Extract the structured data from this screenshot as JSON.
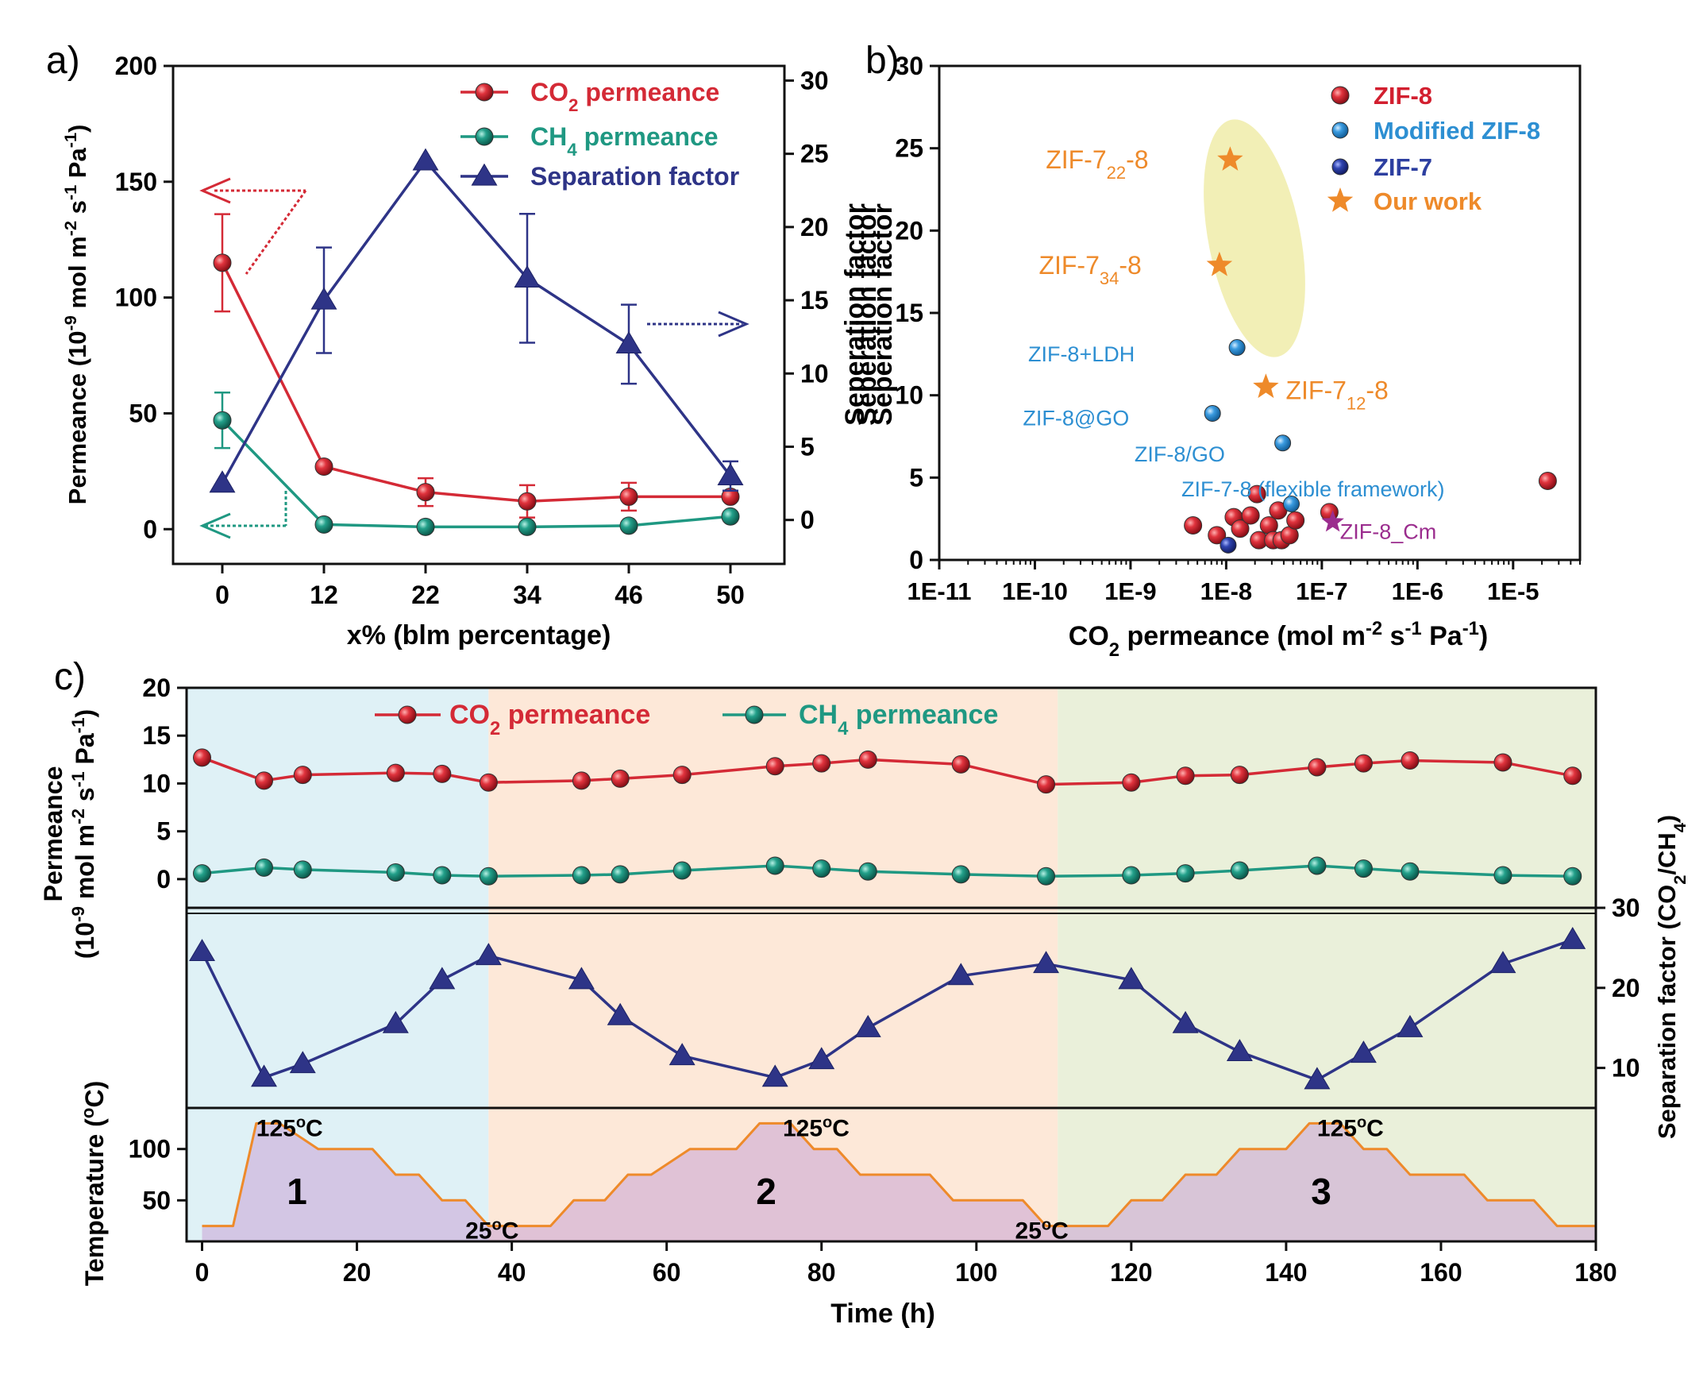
{
  "colors": {
    "co2": "#d42a36",
    "co2_marker": "#d21f2f",
    "ch4": "#1f9882",
    "sf": "#2e3487",
    "orange": "#ee8a2a",
    "modified_blue": "#2d8fd2",
    "zif7_blue": "#2d3fa0",
    "purple": "#9b2d8e",
    "ellipse_fill": "#f2efb6",
    "bg1": "#dff1f6",
    "bg2": "#fde8d8",
    "bg3": "#eaf0da",
    "temp_line": "#ee8a2a"
  },
  "panel_labels": [
    "a)",
    "b)",
    "c)"
  ],
  "chart_data": [
    {
      "id": "a",
      "type": "line",
      "xlabel": "x% (blm percentage)",
      "ylabel": "Permeance (10<sup>-9</sup> mol m<sup>-2</sup> s<sup>-1</sup> Pa<sup>-1</sup>)",
      "y2label": "Seperation factor",
      "categories": [
        "0",
        "12",
        "22",
        "34",
        "46",
        "50"
      ],
      "ylim": [
        -15,
        200
      ],
      "yticks": [
        0,
        50,
        100,
        150,
        200
      ],
      "y2lim": [
        -3,
        31
      ],
      "y2ticks": [
        0,
        5,
        10,
        15,
        20,
        25,
        30
      ],
      "legend_position": "top-right",
      "series": [
        {
          "name": "CO<sub>2</sub> permeance",
          "axis": "left",
          "values": [
            115,
            27,
            16,
            12,
            14,
            14
          ],
          "errors": [
            21,
            0,
            6,
            7,
            6,
            0
          ]
        },
        {
          "name": "CH<sub>4</sub> permeance",
          "axis": "left",
          "values": [
            47,
            2,
            1,
            1,
            1.5,
            5.5
          ],
          "errors": [
            12,
            0,
            0,
            0,
            0,
            0
          ]
        },
        {
          "name": "Separation factor",
          "axis": "right",
          "values": [
            2.5,
            15,
            24.5,
            16.5,
            12,
            3
          ],
          "errors": [
            0,
            3.6,
            0,
            4.4,
            2.7,
            1
          ]
        }
      ]
    },
    {
      "id": "b",
      "type": "scatter",
      "xlabel": "CO<sub>2</sub> permeance (mol m<sup>-2</sup> s<sup>-1</sup> Pa<sup>-1</sup>)",
      "ylabel_lines": [
        "Seperation factor",
        "Seperation factor"
      ],
      "x_scale": "log",
      "xlim": [
        1e-11,
        5e-05
      ],
      "xtick_labels": [
        "1E-11",
        "1E-10",
        "1E-9",
        "1E-8",
        "1E-7",
        "1E-6",
        "1E-5"
      ],
      "xtick_exponents": [
        -11,
        -10,
        -9,
        -8,
        -7,
        -6,
        -5
      ],
      "ylim": [
        0,
        30
      ],
      "yticks": [
        0,
        5,
        10,
        15,
        20,
        25,
        30
      ],
      "legend_position": "top-right",
      "legend": [
        {
          "label": "ZIF-8",
          "kind": "zif8"
        },
        {
          "label": "Modified ZIF-8",
          "kind": "modified"
        },
        {
          "label": "ZIF-7",
          "kind": "zif7"
        },
        {
          "label": "Our work",
          "kind": "ours"
        }
      ],
      "points": [
        {
          "kind": "zif8",
          "x": 4.5e-09,
          "y": 2.1
        },
        {
          "kind": "zif8",
          "x": 8e-09,
          "y": 1.5
        },
        {
          "kind": "zif8",
          "x": 1.2e-08,
          "y": 2.6
        },
        {
          "kind": "zif8",
          "x": 1.4e-08,
          "y": 1.9
        },
        {
          "kind": "zif8",
          "x": 1.8e-08,
          "y": 2.7
        },
        {
          "kind": "zif8",
          "x": 2.1e-08,
          "y": 4.0
        },
        {
          "kind": "zif8",
          "x": 2.2e-08,
          "y": 1.2
        },
        {
          "kind": "zif8",
          "x": 2.8e-08,
          "y": 2.1
        },
        {
          "kind": "zif8",
          "x": 3.1e-08,
          "y": 1.2
        },
        {
          "kind": "zif8",
          "x": 3.5e-08,
          "y": 3.0
        },
        {
          "kind": "zif8",
          "x": 3.8e-08,
          "y": 1.2
        },
        {
          "kind": "zif8",
          "x": 4.6e-08,
          "y": 1.5
        },
        {
          "kind": "zif8",
          "x": 5.3e-08,
          "y": 2.4
        },
        {
          "kind": "zif8",
          "x": 1.2e-07,
          "y": 2.9
        },
        {
          "kind": "zif8",
          "x": 2.3e-05,
          "y": 4.8
        },
        {
          "kind": "modified",
          "x": 1.3e-08,
          "y": 12.9
        },
        {
          "kind": "modified",
          "x": 7.2e-09,
          "y": 8.9
        },
        {
          "kind": "modified",
          "x": 3.9e-08,
          "y": 7.1
        },
        {
          "kind": "modified",
          "x": 4.8e-08,
          "y": 3.4
        },
        {
          "kind": "zif7",
          "x": 1.05e-08,
          "y": 0.9
        },
        {
          "kind": "ours",
          "x": 1.1e-08,
          "y": 24.3
        },
        {
          "kind": "ours",
          "x": 8.5e-09,
          "y": 17.9
        },
        {
          "kind": "ours",
          "x": 2.6e-08,
          "y": 10.5
        },
        {
          "kind": "purple",
          "x": 1.3e-07,
          "y": 2.3
        }
      ],
      "annotations": [
        {
          "text": "ZIF-7<tspan baseline-shift='sub' font-size='22'>22</tspan>-8",
          "x": 1.3e-10,
          "y": 24.3,
          "color": "orange"
        },
        {
          "text": "ZIF-7<tspan baseline-shift='sub' font-size='22'>34</tspan>-8",
          "x": 1.1e-10,
          "y": 17.9,
          "color": "orange"
        },
        {
          "text": "ZIF-7<tspan baseline-shift='sub' font-size='22'>12</tspan>-8",
          "x": 4.2e-08,
          "y": 10.3,
          "color": "orange"
        },
        {
          "text": "ZIF-8+LDH",
          "x": 8.5e-11,
          "y": 12.6,
          "color": "modified_blue"
        },
        {
          "text": "ZIF-8@GO",
          "x": 7.5e-11,
          "y": 8.7,
          "color": "modified_blue"
        },
        {
          "text": "ZIF-8/GO",
          "x": 1.1e-09,
          "y": 6.5,
          "color": "modified_blue"
        },
        {
          "text": "ZIF-7-8 (flexible framework)",
          "x": 3.4e-09,
          "y": 4.4,
          "color": "modified_blue"
        },
        {
          "text": "ZIF-8_Cm",
          "x": 1.55e-07,
          "y": 1.8,
          "color": "purple"
        }
      ]
    },
    {
      "id": "c",
      "type": "line",
      "xlabel": "Time (h)",
      "xlim": [
        -2,
        180
      ],
      "xticks": [
        0,
        20,
        40,
        60,
        80,
        100,
        120,
        140,
        160,
        180
      ],
      "ylabel_lines": [
        "Permeance",
        "(10<sup>-9</sup> mol m<sup>-2</sup> s<sup>-1</sup> Pa<sup>-1</sup>)"
      ],
      "y2label": "Separation factor (CO<sub>2</sub>/CH<sub>4</sub>)",
      "temp_ylabel": "Temperature (<sup>o</sup>C)",
      "permeance_ylim": [
        -3,
        20
      ],
      "permeance_yticks": [
        0,
        5,
        10,
        15,
        20
      ],
      "sf_ylim": [
        5,
        30
      ],
      "sf_yticks": [
        10,
        20,
        30
      ],
      "temp_ylim": [
        10,
        140
      ],
      "temp_yticks": [
        50,
        100
      ],
      "legend_position": "top",
      "legend": [
        "CO<sub>2</sub> permeance",
        "CH<sub>4</sub> permeance"
      ],
      "x": [
        0,
        8,
        13,
        25,
        31,
        37,
        49,
        54,
        62,
        74,
        80,
        86,
        98,
        109,
        120,
        127,
        134,
        144,
        150,
        156,
        168,
        177
      ],
      "series": [
        {
          "name": "CO<sub>2</sub> permeance",
          "values": [
            12.7,
            10.3,
            10.9,
            11.1,
            11.0,
            10.1,
            10.3,
            10.5,
            10.9,
            11.8,
            12.1,
            12.5,
            12.0,
            9.9,
            10.1,
            10.8,
            10.9,
            11.7,
            12.1,
            12.4,
            12.2,
            10.8
          ]
        },
        {
          "name": "CH<sub>4</sub> permeance",
          "values": [
            0.6,
            1.2,
            1.0,
            0.7,
            0.4,
            0.3,
            0.4,
            0.5,
            0.9,
            1.4,
            1.1,
            0.8,
            0.5,
            0.3,
            0.4,
            0.6,
            0.9,
            1.4,
            1.1,
            0.8,
            0.4,
            0.3
          ]
        },
        {
          "name": "Separation factor",
          "values": [
            24.5,
            8.8,
            10.5,
            15.5,
            21.0,
            24.0,
            21.0,
            16.5,
            11.5,
            8.8,
            11.0,
            15.0,
            21.5,
            23.0,
            21.0,
            15.5,
            12.0,
            8.5,
            11.8,
            15.0,
            23.0,
            26.0
          ]
        }
      ],
      "temperature": {
        "x": [
          0,
          4,
          7,
          10,
          15,
          19,
          22,
          25,
          28,
          31,
          34,
          37,
          42,
          45,
          48,
          52,
          55,
          58,
          63,
          66,
          69,
          72,
          76,
          79,
          82,
          85,
          88,
          94,
          97,
          100,
          106,
          109,
          113,
          117,
          120,
          124,
          127,
          131,
          134,
          137,
          140,
          143,
          147,
          150,
          153,
          156,
          160,
          163,
          166,
          169,
          172,
          175,
          180
        ],
        "values": [
          25,
          25,
          125,
          125,
          100,
          100,
          100,
          75,
          75,
          50,
          50,
          25,
          25,
          25,
          50,
          50,
          75,
          75,
          100,
          100,
          100,
          125,
          125,
          100,
          100,
          75,
          75,
          75,
          50,
          50,
          50,
          25,
          25,
          25,
          50,
          50,
          75,
          75,
          100,
          100,
          100,
          125,
          125,
          100,
          100,
          75,
          75,
          75,
          50,
          50,
          50,
          25,
          25
        ]
      },
      "regions": [
        {
          "label": "1",
          "from": -2,
          "to": 37,
          "color": "bg1"
        },
        {
          "label": "2",
          "from": 37,
          "to": 110.5,
          "color": "bg2"
        },
        {
          "label": "3",
          "from": 110.5,
          "to": 180,
          "color": "bg3"
        }
      ],
      "temp_labels": [
        {
          "text": "125<tspan baseline-shift='super' font-size='20'>o</tspan>C",
          "x": 7,
          "t": 128
        },
        {
          "text": "25<tspan baseline-shift='super' font-size='20'>o</tspan>C",
          "x": 34,
          "t": 28
        },
        {
          "text": "125<tspan baseline-shift='super' font-size='20'>o</tspan>C",
          "x": 75,
          "t": 128
        },
        {
          "text": "25<tspan baseline-shift='super' font-size='20'>o</tspan>C",
          "x": 105,
          "t": 28
        },
        {
          "text": "125<tspan baseline-shift='super' font-size='20'>o</tspan>C",
          "x": 144,
          "t": 128
        }
      ]
    }
  ]
}
